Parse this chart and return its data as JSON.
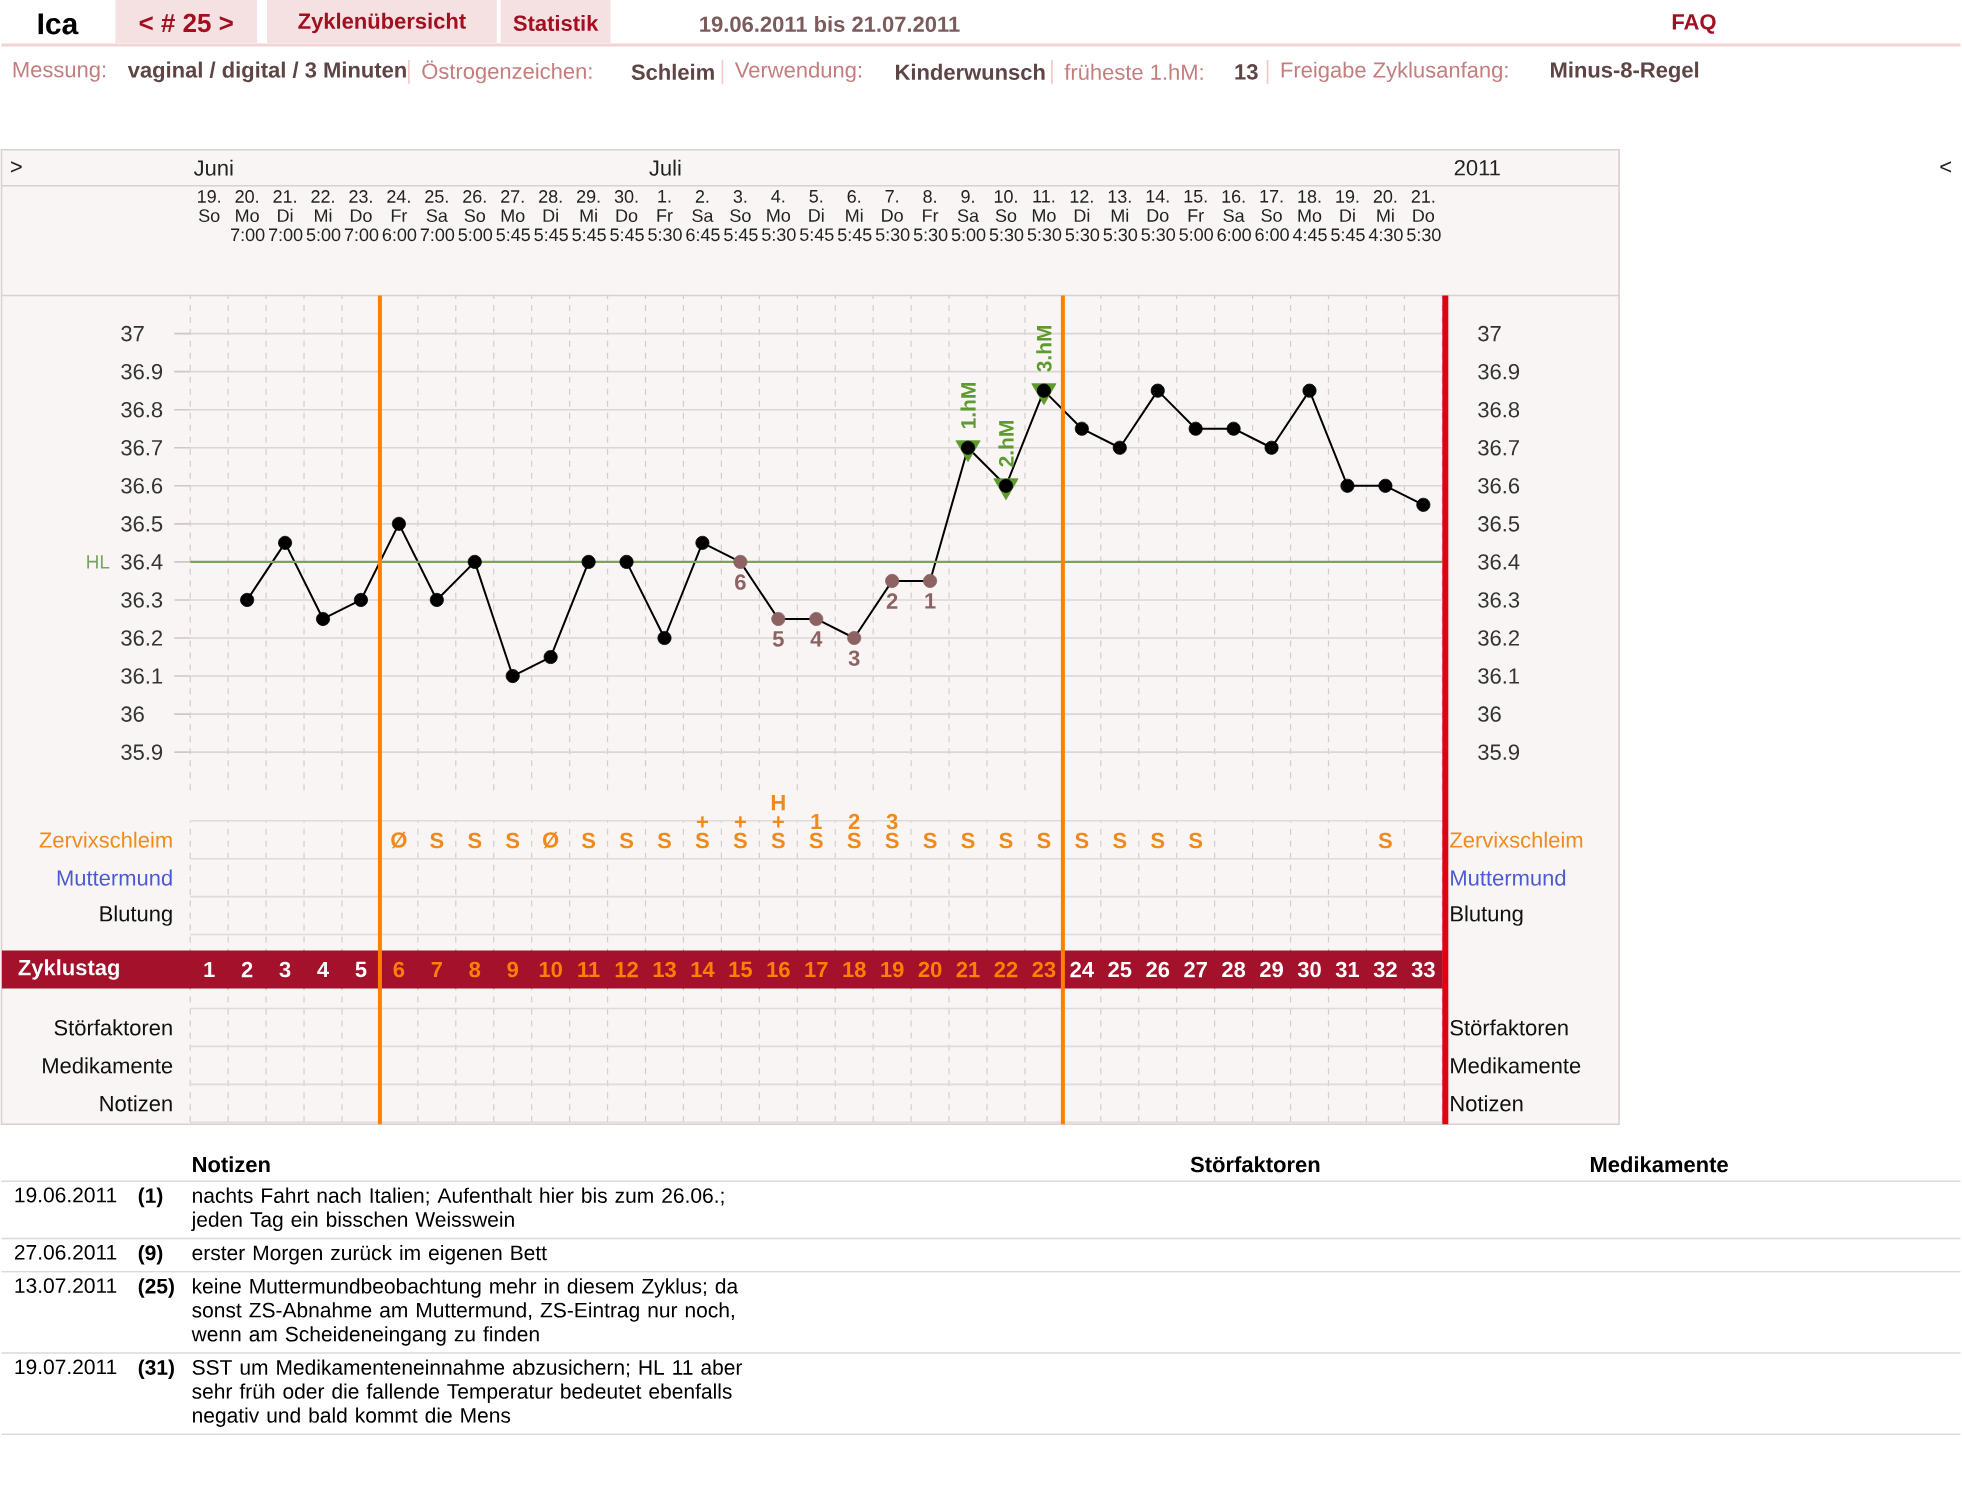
{
  "chart_data": [
    {
      "type": "other",
      "title": "Ica",
      "annotations": [
        "< # 25 >",
        "Zyklenübersicht",
        "Statistik",
        "19.06.2011 bis 21.07.2011",
        "FAQ",
        "Messung:",
        "vaginal / digital / 3 Minuten",
        "Östrogenzeichen:",
        "Schleim",
        "Verwendung:",
        "Kinderwunsch",
        "früheste 1.hM:",
        "13",
        "Freigabe Zyklusanfang:",
        "Minus-8-Regel"
      ]
    },
    {
      "type": "line",
      "categories": [
        "19. So",
        "20. Mo 7:00",
        "21. Di 7:00",
        "22. Mi 5:00",
        "23. Do 7:00",
        "24. Fr 6:00",
        "25. Sa 7:00",
        "26. So 5:00",
        "27. Mo 5:45",
        "28. Di 5:45",
        "29. Mi 5:45",
        "30. Do 5:45",
        "1. Fr 5:30",
        "2. Sa 6:45",
        "3. So 5:45",
        "4. Mo 5:30",
        "5. Di 5:45",
        "6. Mi 5:45",
        "7. Do 5:30",
        "8. Fr 5:30",
        "9. Sa 5:00",
        "10. So 5:30",
        "11. Mo 5:30",
        "12. Di 5:30",
        "13. Mi 5:30",
        "14. Do 5:30",
        "15. Fr 5:00",
        "16. Sa 6:00",
        "17. So 6:00",
        "18. Mo 4:45",
        "19. Di 5:45",
        "20. Mi 4:30",
        "21. Do 5:30"
      ],
      "ylim": [
        35.8,
        37.1
      ],
      "yticks": [
        35.9,
        36,
        36.1,
        36.2,
        36.3,
        36.4,
        36.5,
        36.6,
        36.7,
        36.8,
        36.9,
        37
      ],
      "y2lim": [
        35.8,
        37.1
      ],
      "y2ticks": [
        35.9,
        36,
        36.1,
        36.2,
        36.3,
        36.4,
        36.5,
        36.6,
        36.7,
        36.8,
        36.9,
        37
      ],
      "grid": true,
      "series": [
        {
          "color": "#000000",
          "marker": "circle",
          "values": [
            null,
            36.3,
            36.45,
            36.25,
            36.3,
            36.5,
            36.3,
            36.4,
            36.1,
            36.15,
            36.4,
            36.4,
            36.2,
            36.45,
            36.4,
            36.25,
            36.25,
            36.2,
            36.35,
            36.35,
            36.7,
            36.6,
            36.85,
            36.75,
            36.7,
            36.85,
            36.75,
            36.75,
            36.7,
            36.85,
            36.6,
            36.6,
            36.55
          ],
          "colors": [
            null,
            "#000000",
            "#000000",
            "#000000",
            "#000000",
            "#000000",
            "#000000",
            "#000000",
            "#000000",
            "#000000",
            "#000000",
            "#000000",
            "#000000",
            "#000000",
            "#8c6262",
            "#8c6262",
            "#8c6262",
            "#8c6262",
            "#8c6262",
            "#8c6262",
            "#000000",
            "#000000",
            "#000000",
            "#000000",
            "#000000",
            "#000000",
            "#000000",
            "#000000",
            "#000000",
            "#000000",
            "#000000",
            "#000000",
            "#000000"
          ]
        },
        {
          "type": "scatter",
          "color": "#5e9a2e",
          "marker": "triangle",
          "values": [
            null,
            null,
            null,
            null,
            null,
            null,
            null,
            null,
            null,
            null,
            null,
            null,
            null,
            null,
            null,
            null,
            null,
            null,
            null,
            null,
            36.7,
            36.6,
            36.85,
            null,
            null,
            null,
            null,
            null,
            null,
            null,
            null,
            null,
            null
          ]
        }
      ],
      "ref_lines": [
        {
          "axis": "y",
          "value": 36.4,
          "label": "HL",
          "color": "#7da35a"
        }
      ],
      "annotations": [
        ">",
        "Juni",
        "Juli",
        "2011",
        "<",
        {
          "text": "6",
          "x": "3. So 5:45",
          "y": 36.4
        },
        {
          "text": "5",
          "x": "4. Mo 5:30",
          "y": 36.25
        },
        {
          "text": "4",
          "x": "5. Di 5:45",
          "y": 36.25
        },
        {
          "text": "3",
          "x": "6. Mi 5:45",
          "y": 36.2
        },
        {
          "text": "2",
          "x": "7. Do 5:30",
          "y": 36.35
        },
        {
          "text": "1",
          "x": "8. Fr 5:30",
          "y": 36.35
        },
        {
          "text": "1.hM",
          "x": "9. Sa 5:00",
          "y": 36.7
        },
        {
          "text": "2.hM",
          "x": "10. So 5:30",
          "y": 36.6
        },
        {
          "text": "3.hM",
          "x": "11. Mo 5:30",
          "y": 36.85
        }
      ]
    },
    {
      "type": "heatmap",
      "categories": [
        "1",
        "2",
        "3",
        "4",
        "5",
        "6",
        "7",
        "8",
        "9",
        "10",
        "11",
        "12",
        "13",
        "14",
        "15",
        "16",
        "17",
        "18",
        "19",
        "20",
        "21",
        "22",
        "23",
        "24",
        "25",
        "26",
        "27",
        "28",
        "29",
        "30",
        "31",
        "32",
        "33"
      ],
      "xlabel": "Zyklustag",
      "grid": true,
      "y_categories": [
        "Zervixschleim",
        "Muttermund",
        "Blutung",
        "Störfaktoren",
        "Medikamente",
        "Notizen"
      ],
      "y2_categories": [
        "Zervixschleim",
        "Muttermund",
        "Blutung",
        "Störfaktoren",
        "Medikamente",
        "Notizen"
      ],
      "cells": [
        [
          null,
          null,
          null,
          null,
          null,
          null,
          null,
          null,
          null,
          null,
          null,
          null,
          null,
          null,
          null,
          null,
          null,
          null,
          null,
          null,
          null,
          null,
          null,
          null,
          null,
          null,
          null,
          null,
          null,
          null,
          null,
          null,
          null
        ],
        [
          null,
          null,
          null,
          null,
          null,
          null,
          null,
          null,
          null,
          null,
          null,
          null,
          null,
          null,
          null,
          null,
          null,
          null,
          null,
          null,
          null,
          null,
          null,
          null,
          null,
          null,
          null,
          null,
          null,
          null,
          null,
          null,
          null
        ],
        [
          null,
          null,
          null,
          null,
          null,
          null,
          null,
          null,
          null,
          null,
          null,
          null,
          null,
          null,
          null,
          null,
          null,
          null,
          null,
          null,
          null,
          null,
          null,
          null,
          null,
          null,
          null,
          null,
          null,
          null,
          null,
          null,
          null
        ],
        [
          null,
          null,
          null,
          null,
          null,
          null,
          null,
          null,
          null,
          null,
          null,
          null,
          null,
          null,
          null,
          null,
          null,
          null,
          null,
          null,
          null,
          null,
          null,
          null,
          null,
          null,
          null,
          null,
          null,
          null,
          null,
          null,
          null
        ],
        [
          null,
          null,
          null,
          null,
          null,
          null,
          null,
          null,
          null,
          null,
          null,
          null,
          null,
          null,
          null,
          null,
          null,
          null,
          null,
          null,
          null,
          null,
          null,
          null,
          null,
          null,
          null,
          null,
          null,
          null,
          null,
          null,
          null
        ],
        [
          null,
          null,
          null,
          null,
          null,
          null,
          null,
          null,
          null,
          null,
          null,
          null,
          null,
          null,
          null,
          null,
          null,
          null,
          null,
          null,
          null,
          null,
          null,
          null,
          null,
          null,
          null,
          null,
          null,
          null,
          null,
          null,
          null
        ]
      ],
      "cell_labels": [
        [
          null,
          null,
          null,
          null,
          null,
          "Ø",
          "S",
          "S",
          "S",
          "Ø",
          "S",
          "S",
          "S",
          "+ S",
          "+ S",
          "H + S",
          "1 S",
          "2 S",
          "3 S",
          "S",
          "S",
          "S",
          "S",
          "S",
          "S",
          "S",
          "S",
          null,
          null,
          null,
          null,
          "S",
          null
        ],
        [
          null,
          null,
          null,
          null,
          null,
          null,
          null,
          null,
          null,
          null,
          null,
          null,
          null,
          null,
          null,
          null,
          null,
          null,
          null,
          null,
          null,
          null,
          null,
          null,
          null,
          null,
          null,
          null,
          null,
          null,
          null,
          null,
          null
        ],
        [
          null,
          null,
          null,
          null,
          null,
          null,
          null,
          null,
          null,
          null,
          null,
          null,
          null,
          null,
          null,
          null,
          null,
          null,
          null,
          null,
          null,
          null,
          null,
          null,
          null,
          null,
          null,
          null,
          null,
          null,
          null,
          null,
          null
        ],
        [
          null,
          null,
          null,
          null,
          null,
          null,
          null,
          null,
          null,
          null,
          null,
          null,
          null,
          null,
          null,
          null,
          null,
          null,
          null,
          null,
          null,
          null,
          null,
          null,
          null,
          null,
          null,
          null,
          null,
          null,
          null,
          null,
          null
        ],
        [
          null,
          null,
          null,
          null,
          null,
          null,
          null,
          null,
          null,
          null,
          null,
          null,
          null,
          null,
          null,
          null,
          null,
          null,
          null,
          null,
          null,
          null,
          null,
          null,
          null,
          null,
          null,
          null,
          null,
          null,
          null,
          null,
          null
        ],
        [
          null,
          null,
          null,
          null,
          null,
          null,
          null,
          null,
          null,
          null,
          null,
          null,
          null,
          null,
          null,
          null,
          null,
          null,
          null,
          null,
          null,
          null,
          null,
          null,
          null,
          null,
          null,
          null,
          null,
          null,
          null,
          null,
          null
        ]
      ]
    },
    {
      "type": "other",
      "annotations": [
        "Notizen",
        "Störfaktoren",
        "Medikamente",
        "19.06.2011",
        "(1)",
        "nachts Fahrt nach Italien; Aufenthalt hier bis zum 26.06.; jeden Tag ein bisschen Weisswein",
        "27.06.2011",
        "(9)",
        "erster Morgen zurück im eigenen Bett",
        "13.07.2011",
        "(25)",
        "keine Muttermundbeobachtung mehr in diesem Zyklus; da sonst ZS-Abnahme am Muttermund, ZS-Eintrag nur noch, wenn am Scheideneingang zu finden",
        "19.07.2011",
        "(31)",
        "SST um Medikamenteneinnahme abzusichern; HL 11 aber sehr früh oder die fallende Temperatur bedeutet ebenfalls negativ und bald kommt die Mens"
      ]
    }
  ]
}
